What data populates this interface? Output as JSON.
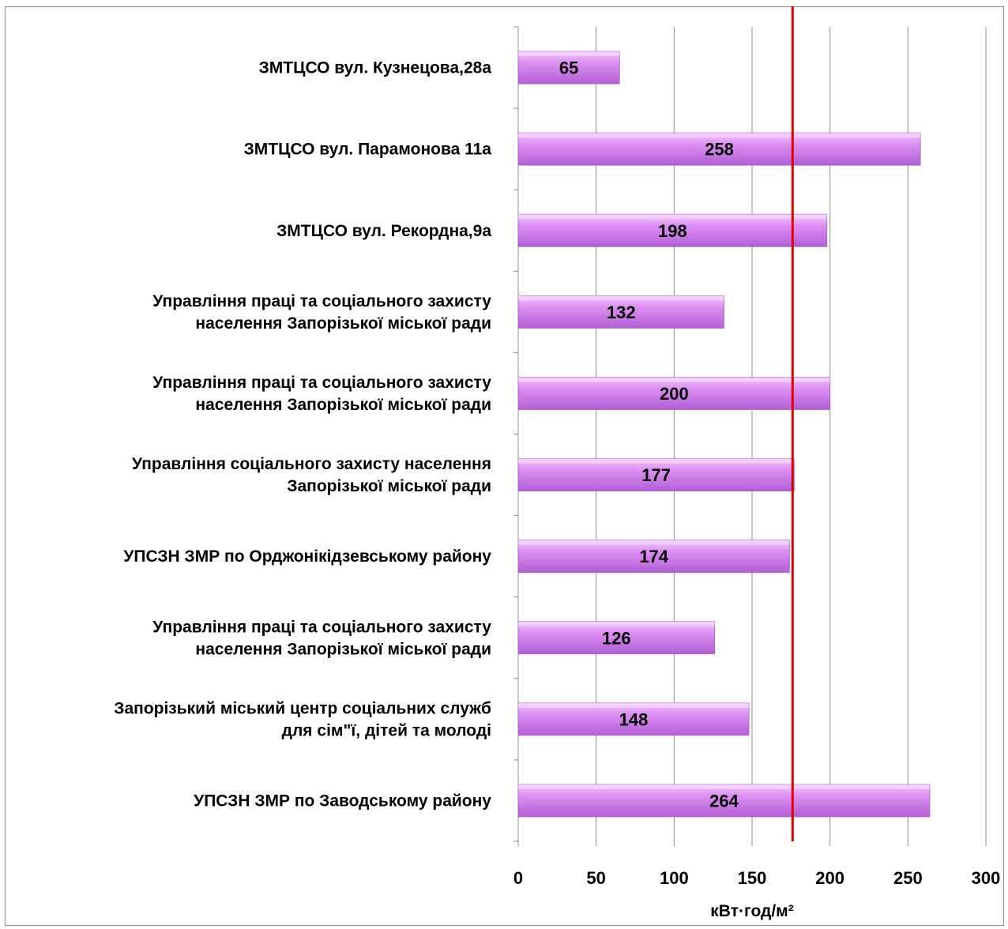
{
  "chart_data": {
    "type": "bar",
    "orientation": "horizontal",
    "categories": [
      "ЗМТЦСО вул. Кузнецова,28а",
      "ЗМТЦСО вул. Парамонова 11а",
      "ЗМТЦСО вул. Рекордна,9а",
      "Управління праці та соціального захисту населення Запорізької міської ради",
      "Управління праці та соціального захисту населення Запорізької міської ради",
      "Управління соціального захисту населення Запорізької міської ради",
      "УПСЗН ЗМР по Орджонікідзевському району",
      "Управління праці та соціального захисту населення Запорізької міської ради",
      "Запорізький міський центр соціальних служб для сім\"ї, дітей та молоді",
      "УПСЗН  ЗМР по Заводському району"
    ],
    "category_lines": [
      [
        "ЗМТЦСО вул. Кузнецова,28а"
      ],
      [
        "ЗМТЦСО вул. Парамонова 11а"
      ],
      [
        "ЗМТЦСО вул. Рекордна,9а"
      ],
      [
        "Управління праці та соціального захисту",
        "населення Запорізької міської ради"
      ],
      [
        "Управління праці та соціального захисту",
        "населення Запорізької міської ради"
      ],
      [
        "Управління соціального захисту населення",
        "Запорізької міської ради"
      ],
      [
        "УПСЗН ЗМР по Орджонікідзевському району"
      ],
      [
        "Управління праці та соціального захисту",
        "населення Запорізької міської ради"
      ],
      [
        "Запорізький міський центр соціальних служб",
        "для сім\"ї, дітей та молоді"
      ],
      [
        "УПСЗН  ЗМР по Заводському району"
      ]
    ],
    "values": [
      65,
      258,
      198,
      132,
      200,
      177,
      174,
      126,
      148,
      264
    ],
    "data_labels": [
      "65",
      "258",
      "198",
      "132",
      "200",
      "177",
      "174",
      "126",
      "148",
      "264"
    ],
    "xlabel": "кВт·год/м²",
    "xlim": [
      0,
      300
    ],
    "xticks": [
      0,
      50,
      100,
      150,
      200,
      250,
      300
    ],
    "xtick_labels": [
      "0",
      "50",
      "100",
      "150",
      "200",
      "250",
      "300"
    ],
    "reference_line": 176,
    "grid": "vertical",
    "bar_color": "#d98cf0",
    "reference_line_color": "#e00000"
  }
}
